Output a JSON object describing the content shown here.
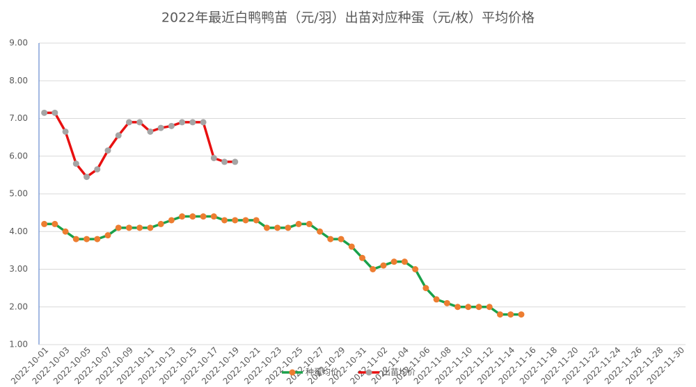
{
  "chart_data": {
    "type": "line",
    "title": "2022年最近白鸭鸭苗（元/羽）出苗对应种蛋（元/枚）平均价格",
    "categories": [
      "2022-10-01",
      null,
      "2022-10-03",
      null,
      "2022-10-05",
      null,
      "2022-10-07",
      null,
      "2022-10-09",
      null,
      "2022-10-11",
      null,
      "2022-10-13",
      null,
      "2022-10-15",
      null,
      "2022-10-17",
      null,
      "2022-10-19",
      null,
      "2022-10-21",
      null,
      "2022-10-23",
      null,
      "2022-10-25",
      null,
      "2022-10-27",
      null,
      "2022-10-29",
      null,
      "2022-10-31",
      null,
      "2022-11-02",
      null,
      "2022-11-04",
      null,
      "2022-11-06",
      null,
      "2022-11-08",
      null,
      "2022-11-10",
      null,
      "2022-11-12",
      null,
      "2022-11-14",
      null,
      "2022-11-16",
      null,
      "2022-11-18",
      null,
      "2022-11-20",
      null,
      "2022-11-22",
      null,
      "2022-11-24",
      null,
      "2022-11-26",
      null,
      "2022-11-28",
      null,
      "2022-11-30"
    ],
    "series": [
      {
        "name": "种蛋均价",
        "color": "#1aa14a",
        "marker_color": "#ed7d31",
        "values": [
          4.2,
          4.2,
          4.0,
          3.8,
          3.8,
          3.8,
          3.9,
          4.1,
          4.1,
          4.1,
          4.1,
          4.2,
          4.3,
          4.4,
          4.4,
          4.4,
          4.4,
          4.3,
          4.3,
          4.3,
          4.3,
          4.1,
          4.1,
          4.1,
          4.2,
          4.2,
          4.0,
          3.8,
          3.8,
          3.6,
          3.3,
          3.0,
          3.1,
          3.2,
          3.2,
          3.0,
          2.5,
          2.2,
          2.1,
          2.0,
          2.0,
          2.0,
          2.0,
          1.8,
          1.8,
          1.8,
          null,
          null,
          null,
          null,
          null,
          null,
          null,
          null,
          null,
          null,
          null,
          null,
          null,
          null,
          null
        ]
      },
      {
        "name": "出苗均价",
        "color": "#e81010",
        "marker_color": "#a5a5a5",
        "values": [
          7.15,
          7.15,
          6.65,
          5.8,
          5.45,
          5.65,
          6.15,
          6.55,
          6.9,
          6.9,
          6.65,
          6.75,
          6.8,
          6.9,
          6.9,
          6.9,
          5.95,
          5.85,
          5.85,
          null,
          null,
          null,
          null,
          null,
          null,
          null,
          null,
          null,
          null,
          null,
          null,
          null,
          null,
          null,
          null,
          null,
          null,
          null,
          null,
          null,
          null,
          null,
          null,
          null,
          null,
          null,
          null,
          null,
          null,
          null,
          null,
          null,
          null,
          null,
          null,
          null,
          null,
          null,
          null,
          null,
          null
        ]
      }
    ],
    "ylim": [
      1,
      9
    ],
    "yticks": [
      {
        "value": 1,
        "label": "1.00"
      },
      {
        "value": 2,
        "label": "2.00"
      },
      {
        "value": 3,
        "label": "3.00"
      },
      {
        "value": 4,
        "label": "4.00"
      },
      {
        "value": 5,
        "label": "5.00"
      },
      {
        "value": 6,
        "label": "6.00"
      },
      {
        "value": 7,
        "label": "7.00"
      },
      {
        "value": 8,
        "label": "8.00"
      },
      {
        "value": 9,
        "label": "9.00"
      }
    ],
    "grid": true,
    "legend": "bottom"
  }
}
